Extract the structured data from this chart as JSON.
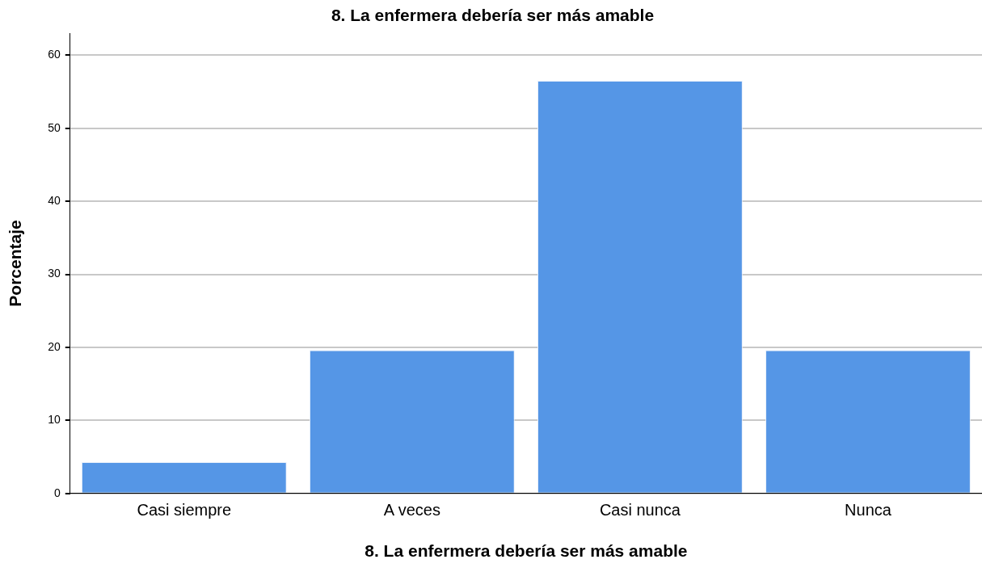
{
  "chart_data": {
    "type": "bar",
    "title": "8. La enfermera debería ser más amable",
    "xlabel": "8. La enfermera debería ser más amable",
    "ylabel": "Porcentaje",
    "categories": [
      "Casi siempre",
      "A veces",
      "Casi nunca",
      "Nunca"
    ],
    "values": [
      4.3,
      19.6,
      56.5,
      19.6
    ],
    "color": "#5596e6",
    "ylim": [
      0,
      63
    ],
    "yticks": [
      0,
      10,
      20,
      30,
      40,
      50,
      60
    ],
    "grid": "y",
    "legend": false
  }
}
